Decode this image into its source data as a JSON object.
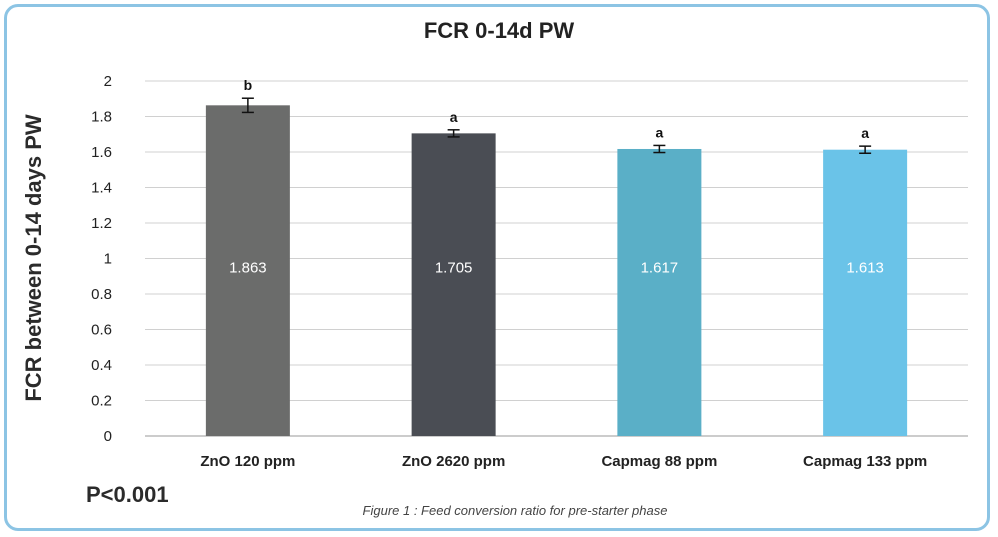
{
  "chart_data": {
    "type": "bar",
    "title": "FCR 0-14d PW",
    "ylabel": "FCR between 0-14 days PW",
    "xlabel": "",
    "categories": [
      "ZnO 120 ppm",
      "ZnO 2620 ppm",
      "Capmag 88 ppm",
      "Capmag 133 ppm"
    ],
    "values": [
      1.863,
      1.705,
      1.617,
      1.613
    ],
    "value_labels": [
      "1.863",
      "1.705",
      "1.617",
      "1.613"
    ],
    "error": [
      0.04,
      0.02,
      0.02,
      0.02
    ],
    "significance": [
      "b",
      "a",
      "a",
      "a"
    ],
    "colors": [
      "#6b6c6b",
      "#4a4d54",
      "#5aafc7",
      "#6ac3e8"
    ],
    "ylim": [
      0,
      2
    ],
    "yticks": [
      "0",
      "0.2",
      "0.4",
      "0.6",
      "0.8",
      "1",
      "1.2",
      "1.4",
      "1.6",
      "1.8",
      "2"
    ],
    "grid": true,
    "legend": "none"
  },
  "annotations": {
    "p_value": "P<0.001",
    "caption": "Figure 1 : Feed conversion ratio for pre-starter phase"
  }
}
